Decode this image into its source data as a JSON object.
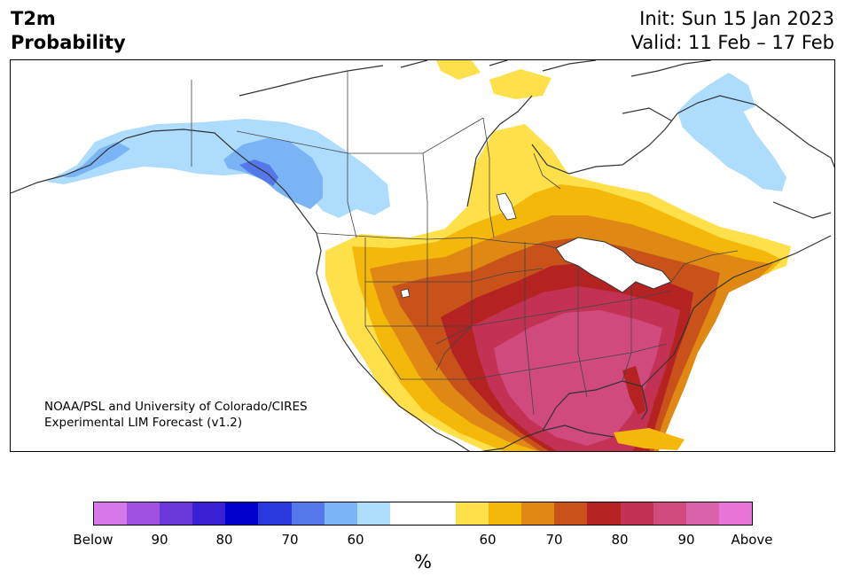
{
  "title": {
    "left_line1": "T2m",
    "left_line2": "Probability",
    "init": "Init: Sun 15 Jan 2023",
    "valid": "Valid: 11 Feb – 17 Feb"
  },
  "credit": {
    "line1": "NOAA/PSL and University of Colorado/CIRES",
    "line2": "Experimental LIM Forecast (v1.2)"
  },
  "map": {
    "region": "North America",
    "below_normal_area": "Alaska, western Canada and northeastern Canada",
    "above_normal_area": "Central, southern and eastern United States; highest over the southeastern US"
  },
  "colorbar": {
    "colors": [
      "#d678ea",
      "#a050e0",
      "#6a38d8",
      "#3a20d4",
      "#0000cc",
      "#2838dc",
      "#5478ea",
      "#7bb4f4",
      "#aedcfc",
      "#ffffff",
      "#ffffff",
      "#fde04a",
      "#f4b80a",
      "#df8814",
      "#c8521a",
      "#b42222",
      "#c33254",
      "#d04a7e",
      "#da62aa",
      "#e876d8"
    ],
    "tick_labels": [
      "Below",
      "90",
      "80",
      "70",
      "60",
      "60",
      "70",
      "80",
      "90",
      "Above"
    ],
    "unit": "%"
  }
}
